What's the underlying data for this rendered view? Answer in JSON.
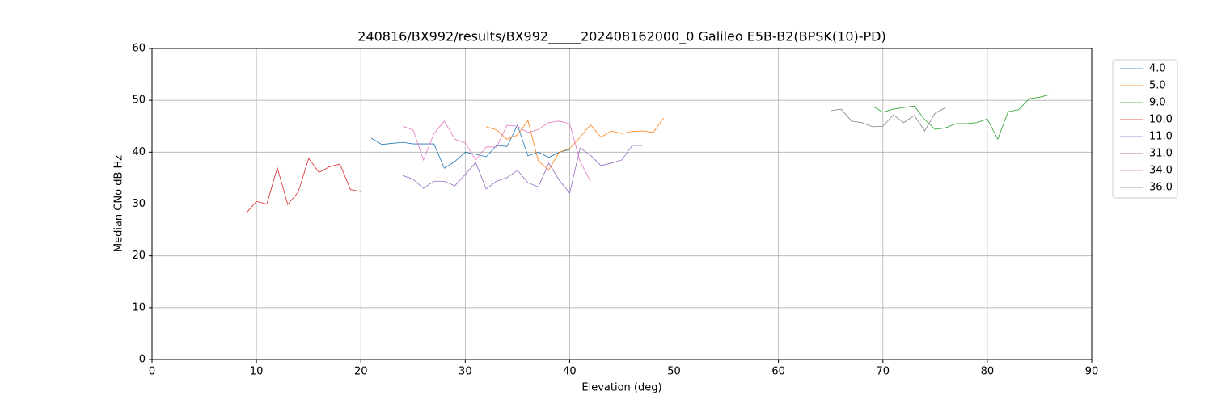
{
  "chart_data": {
    "type": "line",
    "title": "240816/BX992/results/BX992_____202408162000_0 Galileo E5B-B2(BPSK(10)-PD)",
    "x_label": "Elevation (deg)",
    "y_label": "Median CNo dB Hz",
    "xlim": [
      0,
      90
    ],
    "ylim": [
      0,
      60
    ],
    "xticks": [
      0,
      10,
      20,
      30,
      40,
      50,
      60,
      70,
      80,
      90
    ],
    "yticks": [
      0,
      10,
      20,
      30,
      40,
      50,
      60
    ],
    "grid": true,
    "legend": "outside-right",
    "series": [
      {
        "name": "4.0",
        "color": "#1f77b4",
        "x": [
          21,
          22,
          23,
          24,
          25,
          26,
          27,
          28,
          29,
          30,
          31,
          32,
          33,
          34,
          35,
          36,
          37,
          38,
          39,
          40
        ],
        "values": [
          42.7,
          41.5,
          41.7,
          41.9,
          41.6,
          41.6,
          41.6,
          36.9,
          38.2,
          40,
          39.6,
          39.1,
          41.3,
          41.1,
          45.2,
          39.3,
          40,
          39,
          40,
          40.5
        ]
      },
      {
        "name": "5.0",
        "color": "#ff7f0e",
        "x": [
          32,
          33,
          34,
          35,
          36,
          37,
          38,
          39,
          40,
          41,
          42,
          43,
          44,
          45,
          46,
          47,
          48,
          49
        ],
        "values": [
          44.9,
          44.3,
          42.5,
          43.3,
          46.1,
          38.3,
          36.6,
          40,
          40.7,
          42.9,
          45.3,
          42.9,
          44.1,
          43.6,
          44,
          44.1,
          43.8,
          46.6
        ]
      },
      {
        "name": "9.0",
        "color": "#2ca02c",
        "x": [
          69,
          70,
          71,
          72,
          73,
          74,
          75,
          76,
          77,
          78,
          79,
          80,
          81,
          82,
          83,
          84,
          85,
          86
        ],
        "values": [
          48.9,
          47.7,
          48.3,
          48.6,
          48.9,
          46.3,
          44.4,
          44.7,
          45.5,
          45.5,
          45.7,
          46.4,
          42.5,
          47.8,
          48.2,
          50.3,
          50.6,
          51.1
        ]
      },
      {
        "name": "10.0",
        "color": "#d62728",
        "x": [
          9,
          10,
          11,
          12,
          13,
          14,
          15,
          16,
          17,
          18,
          19,
          20
        ],
        "values": [
          28.2,
          30.5,
          30,
          37,
          29.9,
          32.3,
          38.8,
          36.1,
          37.2,
          37.7,
          32.8,
          32.4
        ]
      },
      {
        "name": "11.0",
        "color": "#9467bd",
        "x": [
          24,
          25,
          26,
          27,
          28,
          29,
          30,
          31,
          32,
          33,
          34,
          35,
          36,
          37,
          38,
          39,
          40,
          41,
          42,
          43,
          44,
          45,
          46,
          47
        ],
        "values": [
          35.5,
          34.8,
          33,
          34.4,
          34.4,
          33.5,
          35.7,
          38,
          32.9,
          34.4,
          35.1,
          36.5,
          34.1,
          33.3,
          37.9,
          34.6,
          32.1,
          40.8,
          39.4,
          37.4,
          37.9,
          38.5,
          41.3,
          41.3
        ]
      },
      {
        "name": "31.0",
        "color": "#8c564b",
        "x": [],
        "values": []
      },
      {
        "name": "34.0",
        "color": "#e377c2",
        "x": [
          24,
          25,
          26,
          27,
          28,
          29,
          30,
          31,
          32,
          33,
          34,
          35,
          36,
          37,
          38,
          39,
          40,
          41,
          42
        ],
        "values": [
          45,
          44.3,
          38.5,
          43.6,
          46,
          42.5,
          41.8,
          38.5,
          41,
          41,
          45.2,
          45,
          43.8,
          44.4,
          45.7,
          46,
          45.5,
          38.2,
          34.4
        ]
      },
      {
        "name": "36.0",
        "color": "#7f7f7f",
        "x": [
          65,
          66,
          67,
          68,
          69,
          70,
          71,
          72,
          73,
          74,
          75,
          76
        ],
        "values": [
          48,
          48.3,
          46,
          45.7,
          44.9,
          45,
          47.2,
          45.7,
          47.1,
          44.1,
          47.5,
          48.6
        ]
      }
    ]
  }
}
